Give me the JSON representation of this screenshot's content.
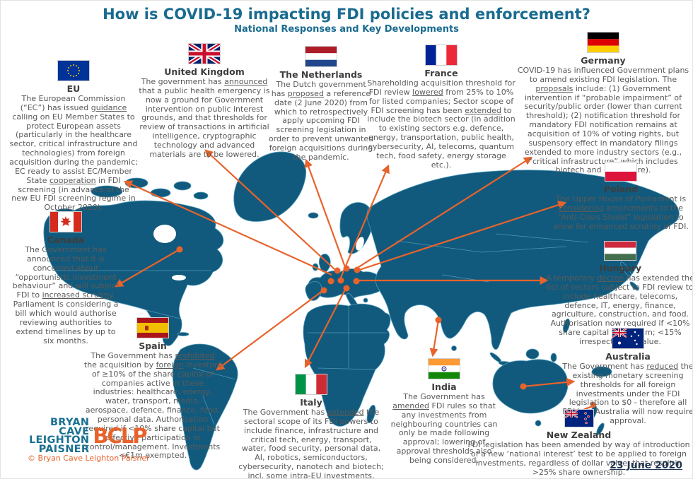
{
  "title": "How is COVID-19 impacting FDI policies and enforcement?",
  "subtitle": "National Responses and Key Developments",
  "date": "23 June 2020",
  "colors": {
    "accent_orange": "#e8632c",
    "map_teal": "#115a7d",
    "title_teal": "#1a6b90",
    "body_gray": "#595959"
  },
  "logo": {
    "lines": [
      "BRYAN",
      "CAVE",
      "LEIGHTON",
      "PAISNER"
    ],
    "mark": "BCLP",
    "copyright": "© Bryan Cave Leighton Paisner"
  },
  "countries": [
    {
      "name": "EU",
      "text": "The European Commission (“EC”) has issued [u]guidance[/u] calling on EU Member States to protect European assets (particularly in the healthcare sector, critical infrastructure and technologies) from foreign acquisition during the pandemic; EC ready to assist EC/Member State [u]cooperation[/u] in FDI screening (in advance of the new EU FDI screening regime in October 2020)."
    },
    {
      "name": "United Kingdom",
      "text": "The government has [u]announced[/u] that a public health emergency is now a ground for Government intervention on public interest grounds, and that thresholds for review of transactions in artificial intelligence, cryptographic technology and advanced materials are to be lowered."
    },
    {
      "name": "The Netherlands",
      "text": "The Dutch government has [u]proposed[/u] a reference date (2 June 2020) from which to retrospectively apply upcoming FDI screening legislation in order to prevent unwanted foreign acquisitions during the pandemic."
    },
    {
      "name": "France",
      "text": "Shareholding acquisition threshold for FDI review [u]lowered[/u] from 25% to 10% for listed companies; Sector scope of FDI screening has been [u]extended[/u] to include the biotech sector (in addition to existing sectors e.g. defence, energy, transportation, public health, cybersecurity, AI, telecoms, quantum tech, food safety, energy storage etc.)."
    },
    {
      "name": "Germany",
      "text": "COVID-19 has influenced Government plans to amend existing FDI legislation. The [u]proposals[/u] include: (1) Government intervention if “probable impairment” of security/public order (lower than current threshold); (2) notification threshold for mandatory FDI notification remains at acquisition of 10% of voting rights, but suspensory effect in mandatory filings extended to more industry sectors (e.g., “critical infrastructure” which includes biotech and healthcare)."
    },
    {
      "name": "Poland",
      "text": "The Upper House of Parliament is [u]considering[/u] amendments to the “Anti-Crisis Shield” legislation to allow for enhanced scrutiny of FDI."
    },
    {
      "name": "Hungary",
      "text": "A temporary [u]decree[/u] has extended the list of sectors subject to FDI review to include healthcare, telecoms, defence, IT, energy, finance, agriculture, construction, and food. Authorisation now required if <10% share capital and <€1m; <15% irrespective of value."
    },
    {
      "name": "Canada",
      "text": "The Government has announced that it is concerned about “opportunistic investment behaviour” and will subject FDI to [u]increased scrutiny[/u]. Parliament is considering a bill which would authorise reviewing authorities to extend timelines by up to six months."
    },
    {
      "name": "Spain",
      "text": "The Government has [u]prohibited[/u] the acquisition by [u]foreign[/u] investors of ≥10% of the share capital of companies active in these industries: healthcare, energy, water, transport, media, aerospace, defence, finance, food, personal data. Authorisation required if <10% share capital but effective participation in control/management. Investments <€1m exempted."
    },
    {
      "name": "Italy",
      "text": "The Government has [u]extended[/u] the sectoral scope of its FDI powers to include finance, infrastructure and critical tech, energy, transport, water, food security, personal data, AI, robotics, semiconductors, cybersecurity, nanotech and biotech; incl. some intra-EU investments."
    },
    {
      "name": "India",
      "text": "The Government has [u]amended[/u] FDI rules so that any investments from neighbouring countries can only be made following approval; lowering of approval thresholds also being considered."
    },
    {
      "name": "Australia",
      "text": "The Government has [u]reduced[/u] the existing monetary screening thresholds for all foreign investments under the FDI legislation to $0 - therefore all FDI into Australia will now require approval."
    },
    {
      "name": "New Zealand",
      "text": "FDI legislation has been amended by way of introduction of a new ‘national interest’ test to be applied to foreign investments, regardless of dollar value, that result in >25% share ownership."
    }
  ]
}
